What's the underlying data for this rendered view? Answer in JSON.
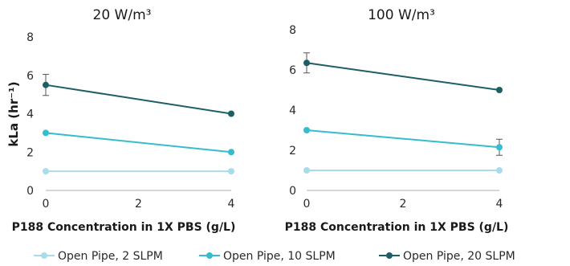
{
  "chart_data": [
    {
      "type": "line",
      "title": "20 W/m³",
      "xlabel": "P188 Concentration in 1X PBS (g/L)",
      "ylabel": "kLa (hr⁻¹)",
      "xlim": [
        0,
        4
      ],
      "ylim": [
        0,
        8
      ],
      "xticks": [
        0,
        2,
        4
      ],
      "yticks": [
        0,
        2,
        4,
        6,
        8
      ],
      "grid": false,
      "series": [
        {
          "name": "Open Pipe, 2 SLPM",
          "color": "#a9dcea",
          "x": [
            0,
            4
          ],
          "y": [
            1.0,
            1.0
          ],
          "error": [
            0,
            0
          ]
        },
        {
          "name": "Open Pipe, 10 SLPM",
          "color": "#36bccd",
          "x": [
            0,
            4
          ],
          "y": [
            3.0,
            2.0
          ],
          "error": [
            0,
            0
          ]
        },
        {
          "name": "Open Pipe, 20 SLPM",
          "color": "#1e5f66",
          "x": [
            0,
            4
          ],
          "y": [
            5.5,
            4.0
          ],
          "error": [
            0.55,
            0
          ]
        }
      ]
    },
    {
      "type": "line",
      "title": "100 W/m³",
      "xlabel": "P188 Concentration in 1X PBS (g/L)",
      "ylabel": "",
      "xlim": [
        0,
        4
      ],
      "ylim": [
        0,
        8
      ],
      "xticks": [
        0,
        2,
        4
      ],
      "yticks": [
        0,
        2,
        4,
        6,
        8
      ],
      "grid": false,
      "series": [
        {
          "name": "Open Pipe, 2 SLPM",
          "color": "#a9dcea",
          "x": [
            0,
            4
          ],
          "y": [
            1.0,
            1.0
          ],
          "error": [
            0,
            0
          ]
        },
        {
          "name": "Open Pipe, 10 SLPM",
          "color": "#36bccd",
          "x": [
            0,
            4
          ],
          "y": [
            3.0,
            2.15
          ],
          "error": [
            0,
            0.4
          ]
        },
        {
          "name": "Open Pipe, 20 SLPM",
          "color": "#1e5f66",
          "x": [
            0,
            4
          ],
          "y": [
            6.35,
            5.0
          ],
          "error": [
            0.5,
            0
          ]
        }
      ]
    }
  ],
  "legend": {
    "placement": "bottom",
    "items": [
      {
        "label": "Open Pipe, 2 SLPM",
        "color": "#a9dcea"
      },
      {
        "label": "Open Pipe, 10 SLPM",
        "color": "#36bccd"
      },
      {
        "label": "Open Pipe, 20 SLPM",
        "color": "#1e5f66"
      }
    ]
  }
}
